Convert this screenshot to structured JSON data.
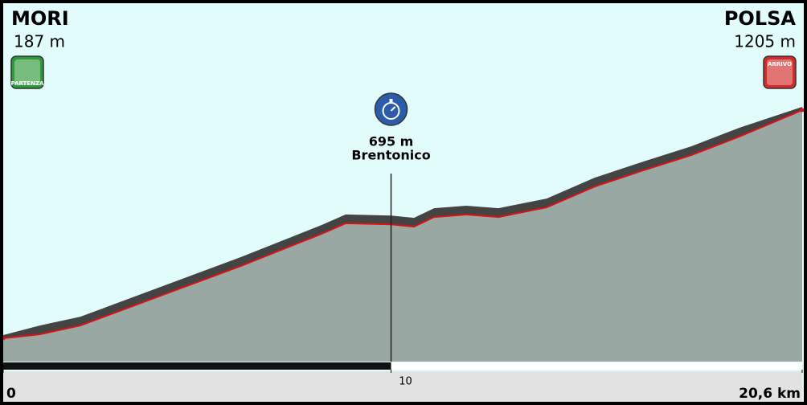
{
  "chart_data": {
    "type": "profile",
    "x": [
      0,
      0.95,
      1.99,
      4.06,
      6.13,
      8.21,
      8.83,
      10,
      10.59,
      11.11,
      11.94,
      12.77,
      14.01,
      15.25,
      16.5,
      17.74,
      18.98,
      20.6
    ],
    "values": [
      187,
      205,
      244,
      377,
      510,
      653,
      700,
      695,
      685,
      728,
      739,
      728,
      771,
      864,
      936,
      1004,
      1087,
      1205
    ],
    "xlim": [
      0,
      20.6
    ],
    "ylim": [
      83,
      1682
    ],
    "xticks": [
      0,
      10,
      {
        "value": 20.6,
        "label": "20,6 km"
      }
    ],
    "start": {
      "name": "MORI",
      "x": 0,
      "elevation": 187,
      "label": "187 m",
      "icon": "PARTENZA"
    },
    "finish": {
      "name": "POLSA",
      "x": 20.6,
      "elevation": 1205,
      "label": "1205 m",
      "icon": "ARRIVO"
    },
    "points": [
      {
        "name": "Brentonico",
        "x": 10,
        "elevation": 695,
        "label": "695 m"
      }
    ],
    "colors": {
      "sky": "#e2fcfc",
      "ground": "#9aa8a4",
      "edge": "#444444",
      "road": "#dd1111"
    }
  }
}
